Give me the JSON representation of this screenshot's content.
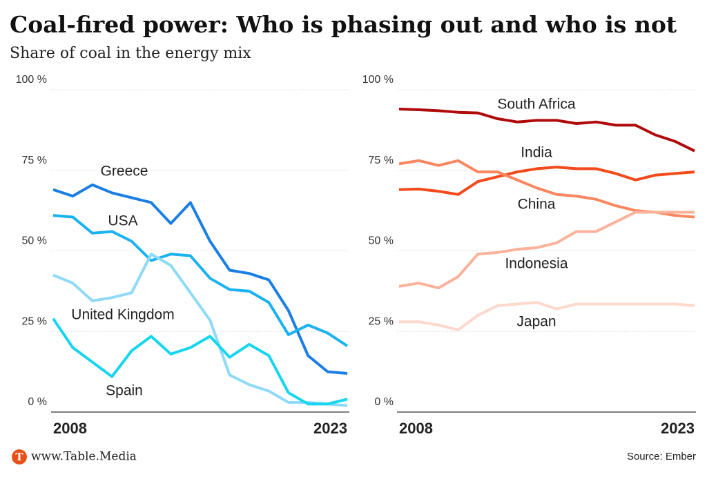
{
  "header": {
    "title": "Coal-fired power: Who is phasing out and who is not",
    "subtitle": "Share of coal in the energy mix"
  },
  "footer": {
    "brand": "www.Table.Media",
    "logo": "T",
    "source": "Source: Ember"
  },
  "chart_data": [
    {
      "type": "line",
      "x": [
        2008,
        2009,
        2010,
        2011,
        2012,
        2013,
        2014,
        2015,
        2016,
        2017,
        2018,
        2019,
        2020,
        2021,
        2022,
        2023
      ],
      "xlim": [
        2008,
        2023
      ],
      "xticks": [
        2008,
        2023
      ],
      "ylim": [
        0,
        100
      ],
      "yticks": [
        {
          "value": 0,
          "label": "0 %"
        },
        {
          "value": 25,
          "label": "25 %"
        },
        {
          "value": 50,
          "label": "50 %"
        },
        {
          "value": 75,
          "label": "75 %"
        },
        {
          "value": 100,
          "label": "100 %"
        }
      ],
      "grid": true,
      "series": [
        {
          "name": "Greece",
          "color": "#1a7ee3",
          "values": [
            69,
            67,
            70.5,
            68,
            66.5,
            65,
            58.5,
            65,
            53,
            44,
            43,
            41,
            31.5,
            17.5,
            12.5,
            12
          ]
        },
        {
          "name": "USA",
          "color": "#1ab2f0",
          "values": [
            61,
            60.5,
            55.5,
            56,
            53,
            47,
            49,
            48.5,
            41.5,
            38,
            37.5,
            34,
            24,
            27,
            24.5,
            20.5
          ]
        },
        {
          "name": "United Kingdom",
          "color": "#8fdaf7",
          "values": [
            42.5,
            40,
            34.5,
            35.5,
            37,
            49,
            45.5,
            37,
            28.5,
            11.5,
            8.5,
            6.5,
            3,
            3,
            2.5,
            2
          ]
        },
        {
          "name": "Spain",
          "color": "#16d5ef",
          "values": [
            29,
            20,
            15.5,
            11,
            19,
            23.5,
            18,
            20,
            23.5,
            17,
            21,
            17.5,
            6,
            2.5,
            2.5,
            4
          ]
        }
      ]
    },
    {
      "type": "line",
      "x": [
        2008,
        2009,
        2010,
        2011,
        2012,
        2013,
        2014,
        2015,
        2016,
        2017,
        2018,
        2019,
        2020,
        2021,
        2022,
        2023
      ],
      "xlim": [
        2008,
        2023
      ],
      "xticks": [
        2008,
        2023
      ],
      "ylim": [
        0,
        100
      ],
      "yticks": [
        {
          "value": 0,
          "label": "0 %"
        },
        {
          "value": 25,
          "label": "25 %"
        },
        {
          "value": 50,
          "label": "50 %"
        },
        {
          "value": 75,
          "label": "75 %"
        },
        {
          "value": 100,
          "label": "100 %"
        }
      ],
      "grid": true,
      "series": [
        {
          "name": "South Africa",
          "color": "#b00b0b",
          "values": [
            94,
            93.8,
            93.5,
            93,
            92.8,
            91,
            90,
            90.5,
            90.5,
            89.5,
            90,
            89,
            89,
            86,
            84,
            81
          ]
        },
        {
          "name": "India",
          "color": "#f24a1a",
          "values": [
            69,
            69.2,
            68.5,
            67.5,
            71.5,
            73,
            74.5,
            75.5,
            76,
            75.5,
            75.5,
            74,
            72,
            73.5,
            74,
            74.5
          ]
        },
        {
          "name": "China",
          "color": "#f98760",
          "values": [
            77,
            78,
            76.5,
            78,
            74.5,
            74.5,
            72,
            69.5,
            67.5,
            67,
            66,
            64,
            62.5,
            62,
            61,
            60.5
          ]
        },
        {
          "name": "Indonesia",
          "color": "#fbb29a",
          "values": [
            39,
            40,
            38.5,
            42,
            49,
            49.5,
            50.5,
            51,
            52.5,
            56,
            56,
            59,
            62,
            62,
            62,
            62
          ]
        },
        {
          "name": "Japan",
          "color": "#fdd8cc",
          "values": [
            28,
            28,
            27,
            25.5,
            30,
            33,
            33.5,
            34,
            32,
            33.5,
            33.5,
            33.5,
            33.5,
            33.5,
            33.5,
            33
          ]
        }
      ]
    }
  ]
}
